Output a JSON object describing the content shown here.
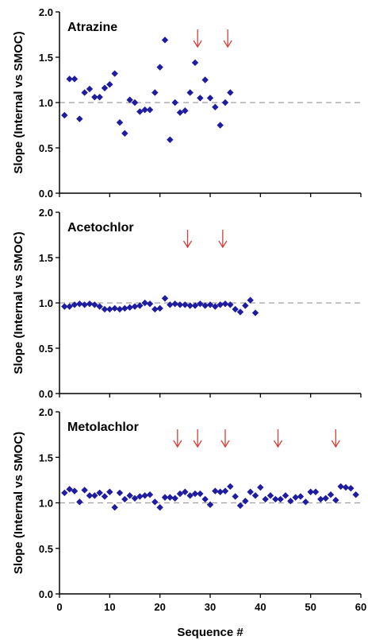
{
  "chart_data": {
    "type": "scatter",
    "figure_xlabel": "Sequence #",
    "xlim": [
      0,
      60
    ],
    "xticks": [
      0,
      10,
      20,
      30,
      40,
      50,
      60
    ],
    "ylim": [
      0.0,
      2.0
    ],
    "yticks": [
      "0.0",
      "0.5",
      "1.0",
      "1.5",
      "2.0"
    ],
    "reference_line": 1.0,
    "colors": {
      "marker": "#1f1ca0",
      "arrow": "#d0413b",
      "reference_line": "#a0a0a0",
      "axis": "#000000"
    },
    "panels": [
      {
        "title": "Atrazine",
        "ylabel": "Slope (Internal vs SMOC)",
        "arrows_at_x": [
          27.5,
          33.5
        ],
        "points": [
          [
            1,
            0.86
          ],
          [
            2,
            1.26
          ],
          [
            3,
            1.26
          ],
          [
            4,
            0.82
          ],
          [
            5,
            1.11
          ],
          [
            6,
            1.15
          ],
          [
            7,
            1.06
          ],
          [
            8,
            1.06
          ],
          [
            9,
            1.16
          ],
          [
            10,
            1.2
          ],
          [
            11,
            1.32
          ],
          [
            12,
            0.78
          ],
          [
            13,
            0.66
          ],
          [
            14,
            1.03
          ],
          [
            15,
            1.0
          ],
          [
            16,
            0.9
          ],
          [
            17,
            0.92
          ],
          [
            18,
            0.92
          ],
          [
            19,
            1.11
          ],
          [
            20,
            1.39
          ],
          [
            21,
            1.69
          ],
          [
            22,
            0.59
          ],
          [
            23,
            1.0
          ],
          [
            24,
            0.89
          ],
          [
            25,
            0.91
          ],
          [
            26,
            1.11
          ],
          [
            27,
            1.44
          ],
          [
            28,
            1.05
          ],
          [
            29,
            1.25
          ],
          [
            30,
            1.05
          ],
          [
            31,
            0.95
          ],
          [
            32,
            0.75
          ],
          [
            33,
            1.0
          ],
          [
            34,
            1.11
          ]
        ]
      },
      {
        "title": "Acetochlor",
        "ylabel": "Slope (Internal vs SMOC)",
        "arrows_at_x": [
          25.5,
          32.5
        ],
        "points": [
          [
            1,
            0.96
          ],
          [
            2,
            0.96
          ],
          [
            3,
            0.98
          ],
          [
            4,
            0.99
          ],
          [
            5,
            0.98
          ],
          [
            6,
            0.99
          ],
          [
            7,
            0.98
          ],
          [
            8,
            0.96
          ],
          [
            9,
            0.93
          ],
          [
            10,
            0.93
          ],
          [
            11,
            0.94
          ],
          [
            12,
            0.93
          ],
          [
            13,
            0.94
          ],
          [
            14,
            0.95
          ],
          [
            15,
            0.96
          ],
          [
            16,
            0.97
          ],
          [
            17,
            1.0
          ],
          [
            18,
            0.99
          ],
          [
            19,
            0.93
          ],
          [
            20,
            0.94
          ],
          [
            21,
            1.05
          ],
          [
            22,
            0.98
          ],
          [
            23,
            0.99
          ],
          [
            24,
            0.98
          ],
          [
            25,
            0.98
          ],
          [
            26,
            0.97
          ],
          [
            27,
            0.97
          ],
          [
            28,
            0.99
          ],
          [
            29,
            0.97
          ],
          [
            30,
            0.98
          ],
          [
            31,
            0.96
          ],
          [
            32,
            0.98
          ],
          [
            33,
            0.99
          ],
          [
            34,
            0.98
          ],
          [
            35,
            0.93
          ],
          [
            36,
            0.9
          ],
          [
            37,
            0.97
          ],
          [
            38,
            1.03
          ],
          [
            39,
            0.89
          ]
        ]
      },
      {
        "title": "Metolachlor",
        "ylabel": "Slope (Internal vs SMOC)",
        "arrows_at_x": [
          23.5,
          27.5,
          33.0,
          43.5,
          55.0
        ],
        "points": [
          [
            1,
            1.11
          ],
          [
            2,
            1.15
          ],
          [
            3,
            1.13
          ],
          [
            4,
            1.01
          ],
          [
            5,
            1.14
          ],
          [
            6,
            1.08
          ],
          [
            7,
            1.08
          ],
          [
            8,
            1.11
          ],
          [
            9,
            1.07
          ],
          [
            10,
            1.12
          ],
          [
            11,
            0.95
          ],
          [
            12,
            1.11
          ],
          [
            13,
            1.04
          ],
          [
            14,
            1.08
          ],
          [
            15,
            1.05
          ],
          [
            16,
            1.07
          ],
          [
            17,
            1.08
          ],
          [
            18,
            1.09
          ],
          [
            19,
            1.01
          ],
          [
            20,
            0.95
          ],
          [
            21,
            1.06
          ],
          [
            22,
            1.06
          ],
          [
            23,
            1.05
          ],
          [
            24,
            1.1
          ],
          [
            25,
            1.12
          ],
          [
            26,
            1.08
          ],
          [
            27,
            1.1
          ],
          [
            28,
            1.1
          ],
          [
            29,
            1.04
          ],
          [
            30,
            0.98
          ],
          [
            31,
            1.13
          ],
          [
            32,
            1.12
          ],
          [
            33,
            1.13
          ],
          [
            34,
            1.18
          ],
          [
            35,
            1.07
          ],
          [
            36,
            0.97
          ],
          [
            37,
            1.02
          ],
          [
            38,
            1.12
          ],
          [
            39,
            1.08
          ],
          [
            40,
            1.17
          ],
          [
            41,
            1.04
          ],
          [
            42,
            1.08
          ],
          [
            43,
            1.04
          ],
          [
            44,
            1.04
          ],
          [
            45,
            1.08
          ],
          [
            46,
            1.02
          ],
          [
            47,
            1.06
          ],
          [
            48,
            1.07
          ],
          [
            49,
            1.01
          ],
          [
            50,
            1.12
          ],
          [
            51,
            1.12
          ],
          [
            52,
            1.04
          ],
          [
            53,
            1.05
          ],
          [
            54,
            1.09
          ],
          [
            55,
            1.03
          ],
          [
            56,
            1.18
          ],
          [
            57,
            1.17
          ],
          [
            58,
            1.16
          ],
          [
            59,
            1.09
          ]
        ]
      }
    ]
  }
}
